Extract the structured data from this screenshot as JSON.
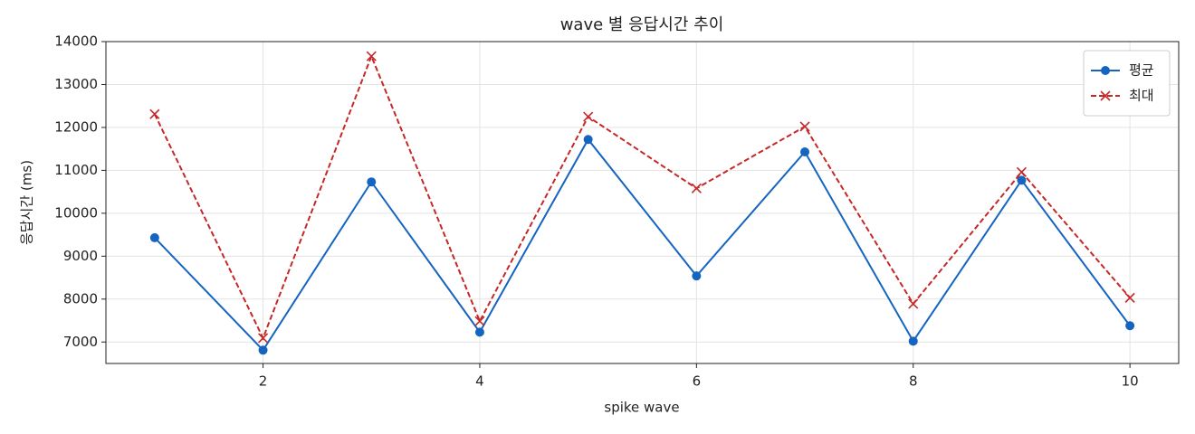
{
  "chart_data": {
    "type": "line",
    "title": "wave 별 응답시간 추이",
    "xlabel": "spike wave",
    "ylabel": "응답시간 (ms)",
    "x": [
      1,
      2,
      3,
      4,
      5,
      6,
      7,
      8,
      9,
      10
    ],
    "series": [
      {
        "name": "평균",
        "color": "#1565c0",
        "marker": "o",
        "linestyle": "solid",
        "values": [
          9430,
          6810,
          10730,
          7230,
          11720,
          8540,
          11430,
          7020,
          10770,
          7380
        ]
      },
      {
        "name": "최대",
        "color": "#c62828",
        "marker": "x",
        "linestyle": "dashed",
        "values": [
          12310,
          7090,
          13660,
          7485,
          12250,
          10580,
          12020,
          7890,
          10960,
          8030
        ]
      }
    ],
    "xlim": [
      0.55,
      10.45
    ],
    "xticks": [
      2,
      4,
      6,
      8,
      10
    ],
    "ylim": [
      6500,
      14000
    ],
    "yticks": [
      7000,
      8000,
      9000,
      10000,
      11000,
      12000,
      13000,
      14000
    ],
    "grid": true,
    "legend": "upper right"
  }
}
